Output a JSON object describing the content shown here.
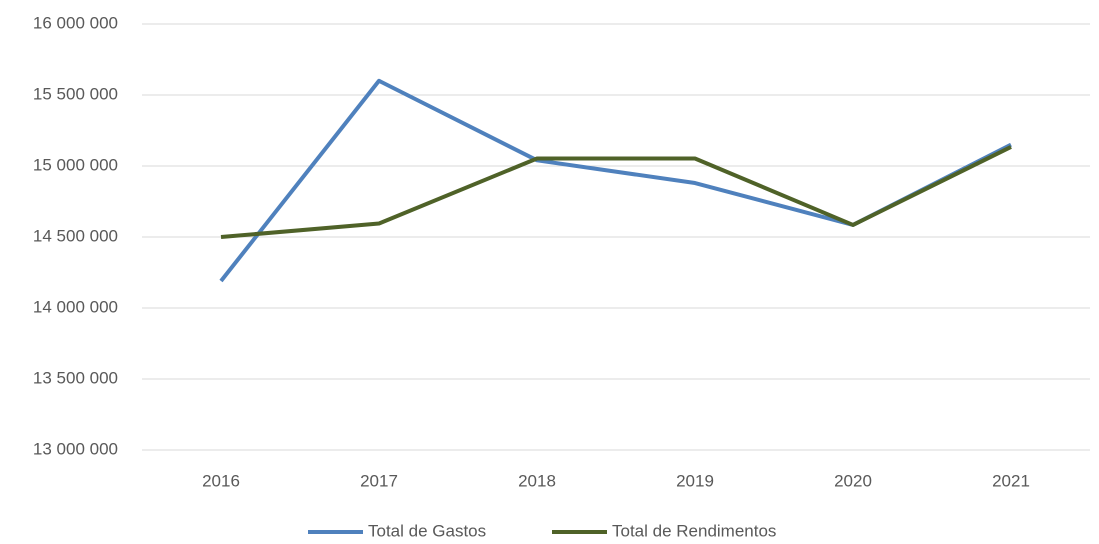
{
  "chart_data": {
    "type": "line",
    "categories": [
      "2016",
      "2017",
      "2018",
      "2019",
      "2020",
      "2021"
    ],
    "series": [
      {
        "name": "Total de Gastos",
        "color": "#4f81bd",
        "values": [
          14190000,
          15600000,
          15040000,
          14880000,
          14585000,
          15150000
        ]
      },
      {
        "name": "Total de Rendimentos",
        "color": "#4f6228",
        "values": [
          14500000,
          14595000,
          15053000,
          15053000,
          14585000,
          15134000
        ]
      }
    ],
    "ylim": [
      13000000,
      16000000
    ],
    "yticks": [
      {
        "value": 13000000,
        "label": "13 000 000"
      },
      {
        "value": 13500000,
        "label": "13 500 000"
      },
      {
        "value": 14000000,
        "label": "14 000 000"
      },
      {
        "value": 14500000,
        "label": "14 500 000"
      },
      {
        "value": 15000000,
        "label": "15 000 000"
      },
      {
        "value": 15500000,
        "label": "15 500 000"
      },
      {
        "value": 16000000,
        "label": "16 000 000"
      }
    ],
    "grid": true,
    "legend": "bottom"
  }
}
